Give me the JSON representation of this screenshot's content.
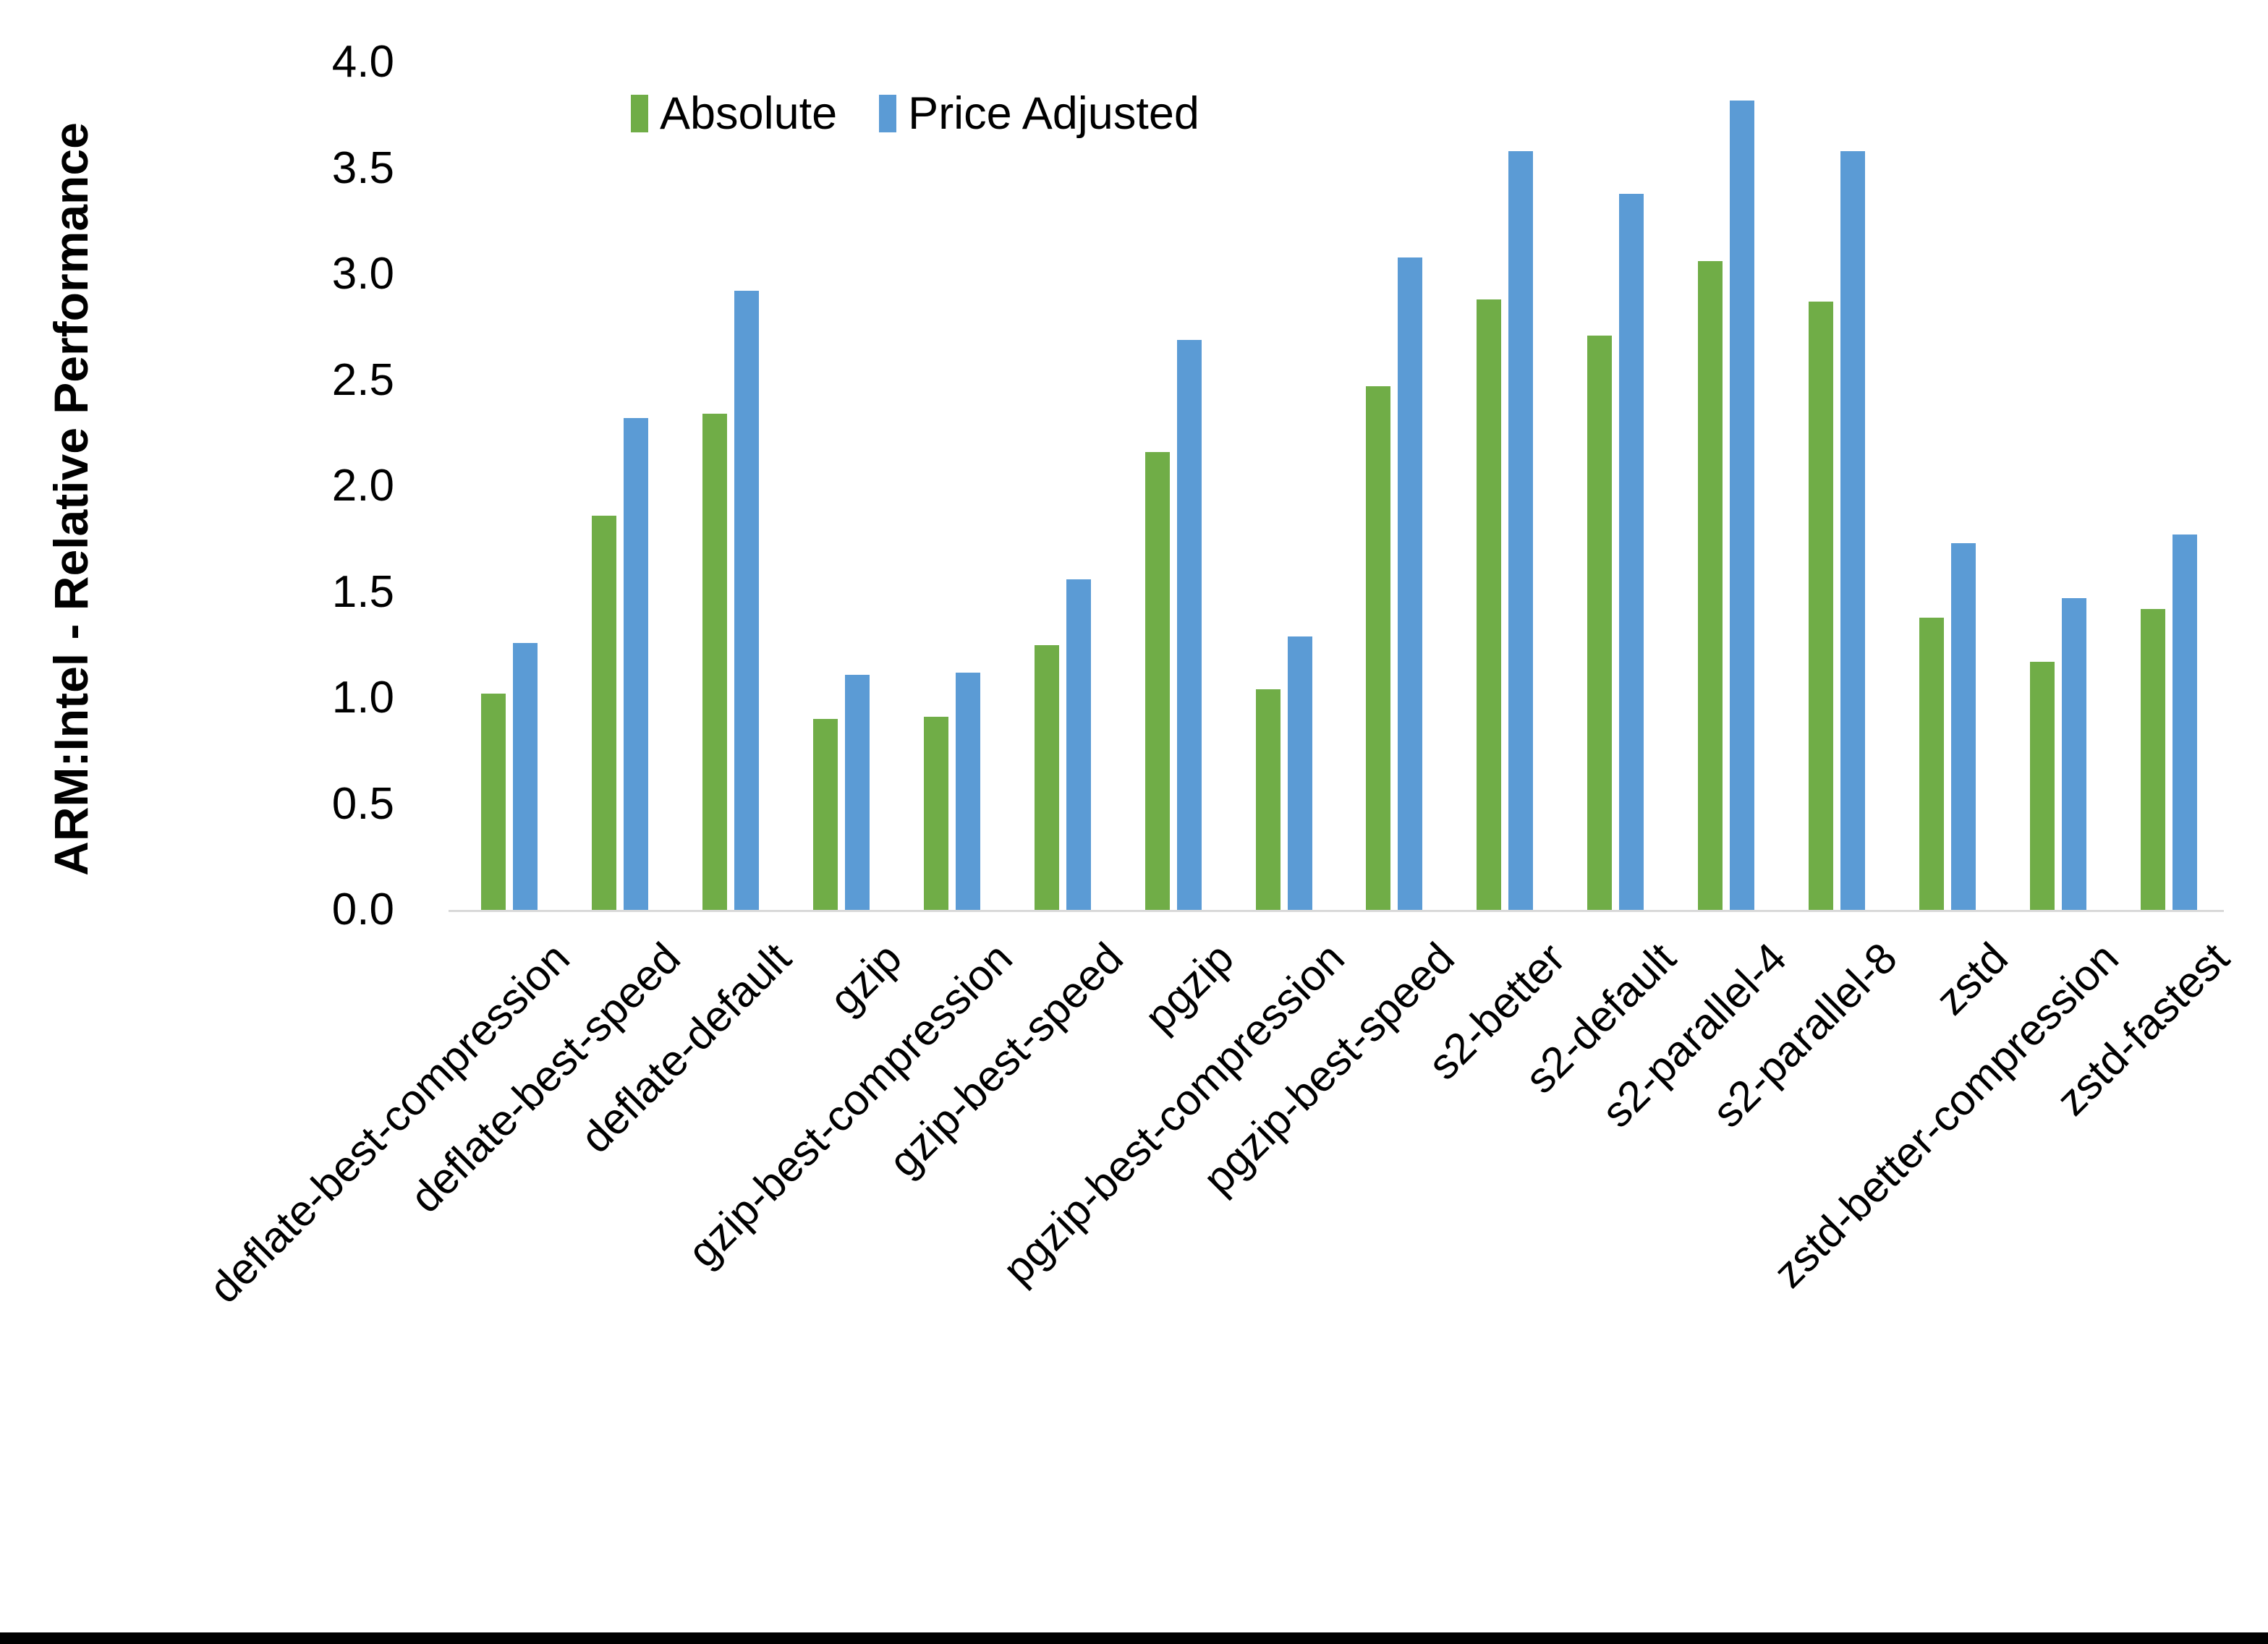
{
  "chart_data": {
    "type": "bar",
    "title": "",
    "ylabel": "ARM:Intel - Relative Performance",
    "xlabel": "",
    "ylim": [
      0.0,
      4.0
    ],
    "ytick_step": 0.5,
    "ytick_format_decimals": 1,
    "grid": false,
    "legend_position": "top",
    "categories": [
      "deflate-best-compression",
      "deflate-best-speed",
      "deflate-default",
      "gzip",
      "gzip-best-compression",
      "gzip-best-speed",
      "pgzip",
      "pgzip-best-compression",
      "pgzip-best-speed",
      "s2-better",
      "s2-default",
      "s2-parallel-4",
      "s2-parallel-8",
      "zstd",
      "zstd-better-compression",
      "zstd-fastest"
    ],
    "series": [
      {
        "name": "Absolute",
        "color": "#70AD47",
        "values": [
          1.02,
          1.86,
          2.34,
          0.9,
          0.91,
          1.25,
          2.16,
          1.04,
          2.47,
          2.88,
          2.71,
          3.06,
          2.87,
          1.38,
          1.17,
          1.42
        ]
      },
      {
        "name": "Price Adjusted",
        "color": "#5B9BD5",
        "values": [
          1.26,
          2.32,
          2.92,
          1.11,
          1.12,
          1.56,
          2.69,
          1.29,
          3.08,
          3.58,
          3.38,
          3.82,
          3.58,
          1.73,
          1.47,
          1.77
        ]
      }
    ]
  },
  "colors": {
    "axis_line": "#d9d9d9",
    "text": "#000000",
    "background": "#ffffff",
    "bottom_band": "#000000"
  }
}
